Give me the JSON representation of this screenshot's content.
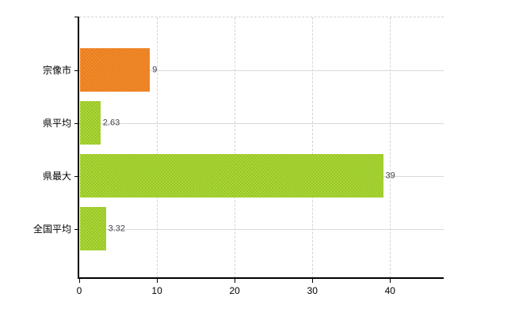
{
  "chart_data": {
    "type": "bar",
    "orientation": "horizontal",
    "title": "",
    "categories": [
      "宗像市",
      "県平均",
      "県最大",
      "全国平均"
    ],
    "values": [
      9,
      2.63,
      39,
      3.32
    ],
    "value_labels": [
      "9",
      "2.63",
      "39",
      "3.32"
    ],
    "bar_colors": [
      {
        "base": "#ea7e1d",
        "alt": "#f08a2e"
      },
      {
        "base": "#9cc824",
        "alt": "#a8d53c"
      },
      {
        "base": "#9cc824",
        "alt": "#a8d53c"
      },
      {
        "base": "#9cc824",
        "alt": "#a8d53c"
      }
    ],
    "x_ticks": [
      0,
      10,
      20,
      30,
      40
    ],
    "x_tick_labels": [
      "0",
      "10",
      "20",
      "30",
      "40"
    ],
    "xlim": [
      0,
      46.9
    ],
    "grid": true,
    "legend": false,
    "axis_color": "#000000",
    "gridline_color": "#d9d9d9",
    "category_label_color": "#000000",
    "value_label_color": "#45454d",
    "background_color": "#ffffff"
  }
}
